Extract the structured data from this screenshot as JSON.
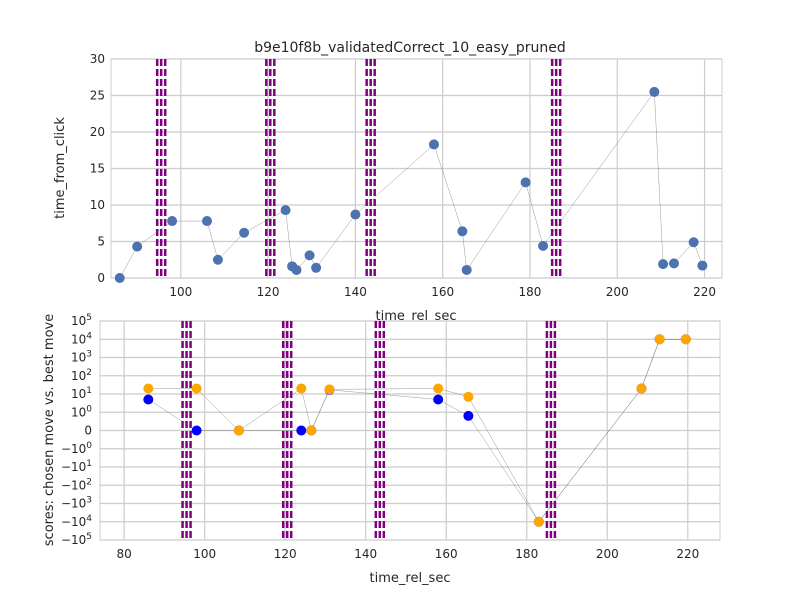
{
  "chart_data": [
    {
      "type": "line",
      "title": "b9e10f8b_validatedCorrect_10_easy_pruned",
      "xlabel": "time_rel_sec",
      "ylabel": "time_from_click",
      "xlim": [
        84,
        224
      ],
      "ylim": [
        0,
        30
      ],
      "x_ticks": [
        100,
        120,
        140,
        160,
        180,
        200,
        220
      ],
      "y_ticks": [
        0,
        5,
        10,
        15,
        20,
        25,
        30
      ],
      "grid": true,
      "vertical_markers": [
        95.5,
        120.5,
        143.5,
        186
      ],
      "marker_color": "#800080",
      "series": [
        {
          "color": "#4c72b0",
          "x": [
            86,
            90,
            98,
            106,
            108.5,
            114.5,
            124,
            125.5,
            126.5,
            129.5,
            131,
            140,
            158,
            164.5,
            165.5,
            179,
            183,
            208.5,
            210.5,
            213,
            217.5,
            219.5
          ],
          "y": [
            0,
            4.3,
            7.8,
            7.8,
            2.5,
            6.2,
            9.3,
            1.6,
            1.1,
            3.1,
            1.4,
            8.7,
            18.3,
            6.4,
            1.1,
            13.1,
            4.4,
            25.5,
            1.9,
            2.0,
            4.9,
            1.7
          ]
        }
      ]
    },
    {
      "type": "scatter",
      "xlabel": "time_rel_sec",
      "ylabel": "scores: chosen move vs. best move",
      "xlim": [
        74,
        228
      ],
      "yscale": "symlog",
      "ylim": [
        -100000,
        100000
      ],
      "x_ticks": [
        80,
        100,
        120,
        140,
        160,
        180,
        200,
        220
      ],
      "y_ticks": [
        {
          "value": 100000,
          "base": "10",
          "exp": "5",
          "neg": false
        },
        {
          "value": 10000,
          "base": "10",
          "exp": "4",
          "neg": false
        },
        {
          "value": 1000,
          "base": "10",
          "exp": "3",
          "neg": false
        },
        {
          "value": 100,
          "base": "10",
          "exp": "2",
          "neg": false
        },
        {
          "value": 10,
          "base": "10",
          "exp": "1",
          "neg": false
        },
        {
          "value": 1,
          "base": "10",
          "exp": "0",
          "neg": false
        },
        {
          "value": 0,
          "base": "0",
          "exp": "",
          "neg": false
        },
        {
          "value": -1,
          "base": "10",
          "exp": "0",
          "neg": true
        },
        {
          "value": -10,
          "base": "10",
          "exp": "1",
          "neg": true
        },
        {
          "value": -100,
          "base": "10",
          "exp": "2",
          "neg": true
        },
        {
          "value": -1000,
          "base": "10",
          "exp": "3",
          "neg": true
        },
        {
          "value": -10000,
          "base": "10",
          "exp": "4",
          "neg": true
        },
        {
          "value": -100000,
          "base": "10",
          "exp": "5",
          "neg": true
        }
      ],
      "grid": true,
      "vertical_markers": [
        95.5,
        120.5,
        143.5,
        186
      ],
      "marker_color": "#800080",
      "series": [
        {
          "color": "#0000ff",
          "x": [
            86,
            98,
            108.5,
            124,
            126.5,
            131,
            158,
            165.5,
            183,
            208.5,
            213,
            219.5
          ],
          "y": [
            5,
            0,
            0,
            0,
            0,
            17,
            5,
            0.8,
            -10000,
            20,
            10000,
            10000
          ]
        },
        {
          "color": "#ffa500",
          "x": [
            86,
            98,
            108.5,
            124,
            126.5,
            131,
            158,
            165.5,
            183,
            208.5,
            213,
            219.5
          ],
          "y": [
            20,
            20,
            0,
            20,
            0,
            18,
            20,
            7,
            -10000,
            20,
            10000,
            10000
          ]
        }
      ]
    }
  ]
}
